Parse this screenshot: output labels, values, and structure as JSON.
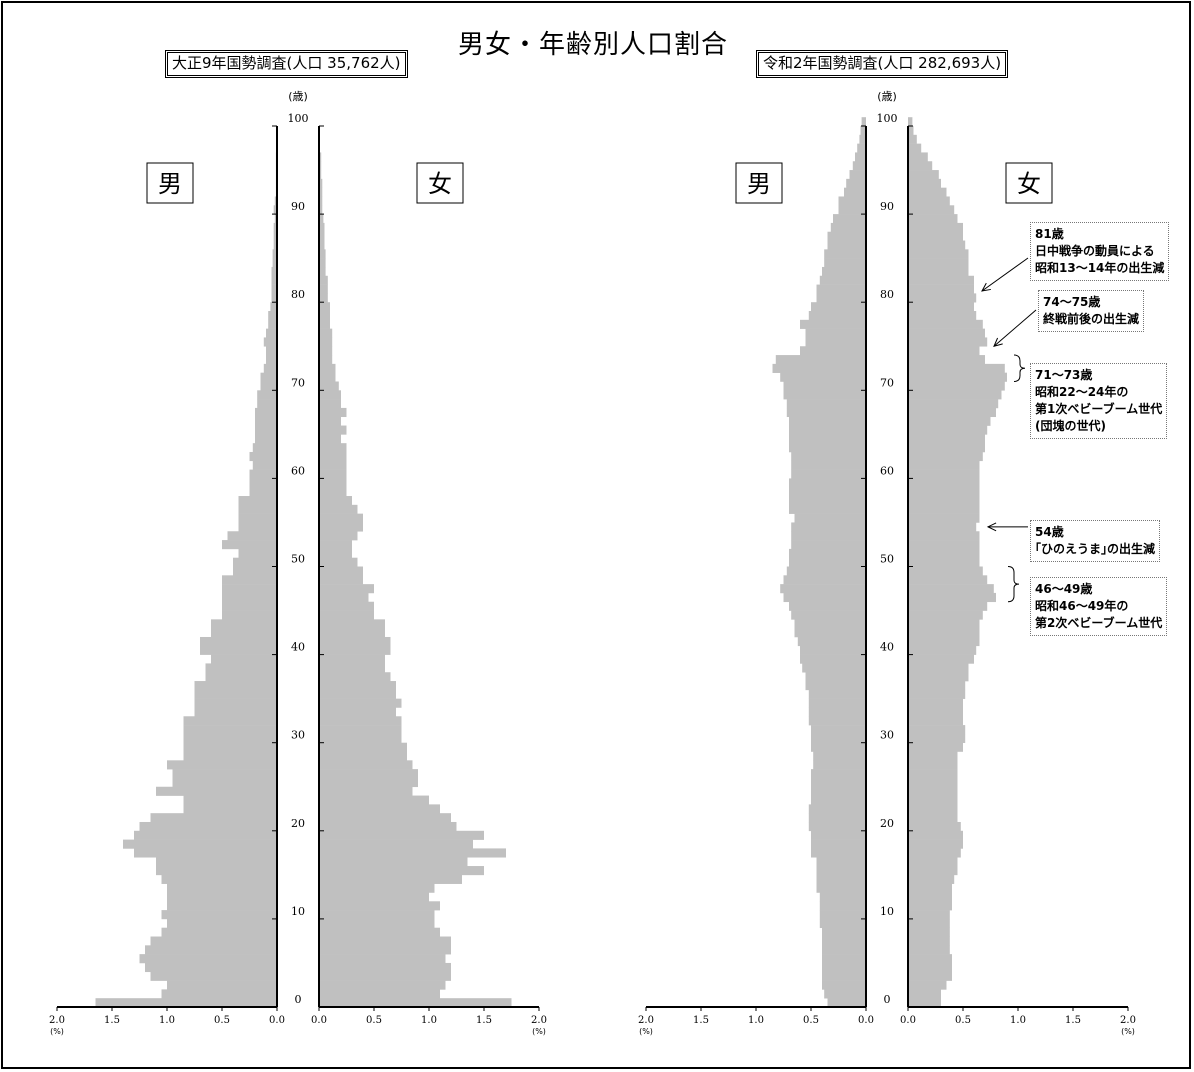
{
  "title": "男女・年齢別人口割合",
  "chart_data": [
    {
      "type": "bar",
      "title": "大正9年国勢調査(人口 35,762人)",
      "y_unit": "(歳)",
      "x_unit": "(%)",
      "y_ticks": [
        0,
        10,
        20,
        30,
        40,
        50,
        60,
        70,
        80,
        90,
        100
      ],
      "x_ticks": [
        "2.0",
        "1.5",
        "1.0",
        "0.5",
        "0.0"
      ],
      "xlim": [
        0,
        2.0
      ],
      "ylim": [
        0,
        100
      ],
      "male_label": "男",
      "female_label": "女",
      "male": [
        1.65,
        1.05,
        1.0,
        1.15,
        1.2,
        1.25,
        1.2,
        1.15,
        1.05,
        1.0,
        1.05,
        1.0,
        1.0,
        1.0,
        1.05,
        1.1,
        1.1,
        1.3,
        1.4,
        1.3,
        1.25,
        1.15,
        0.85,
        0.85,
        1.1,
        0.95,
        0.95,
        1.0,
        0.85,
        0.85,
        0.85,
        0.85,
        0.85,
        0.75,
        0.75,
        0.75,
        0.75,
        0.65,
        0.65,
        0.6,
        0.7,
        0.7,
        0.6,
        0.6,
        0.5,
        0.5,
        0.5,
        0.5,
        0.5,
        0.4,
        0.4,
        0.35,
        0.5,
        0.45,
        0.35,
        0.35,
        0.35,
        0.35,
        0.25,
        0.25,
        0.25,
        0.22,
        0.25,
        0.22,
        0.2,
        0.2,
        0.2,
        0.2,
        0.18,
        0.18,
        0.15,
        0.15,
        0.12,
        0.1,
        0.1,
        0.12,
        0.1,
        0.08,
        0.08,
        0.06,
        0.05,
        0.05,
        0.05,
        0.05,
        0.04,
        0.04,
        0.03,
        0.03,
        0.03,
        0.02,
        0.03,
        0.02,
        0.01,
        0.01,
        0.01,
        0.01,
        0.01,
        0.0,
        0.0,
        0.0,
        0.0
      ],
      "female": [
        1.75,
        1.1,
        1.15,
        1.2,
        1.2,
        1.15,
        1.2,
        1.2,
        1.1,
        1.05,
        1.05,
        1.1,
        1.0,
        1.05,
        1.3,
        1.5,
        1.35,
        1.7,
        1.4,
        1.5,
        1.25,
        1.2,
        1.1,
        1.0,
        0.85,
        0.9,
        0.9,
        0.85,
        0.8,
        0.8,
        0.75,
        0.75,
        0.75,
        0.7,
        0.75,
        0.7,
        0.7,
        0.65,
        0.6,
        0.6,
        0.65,
        0.65,
        0.6,
        0.6,
        0.5,
        0.5,
        0.45,
        0.5,
        0.4,
        0.4,
        0.35,
        0.3,
        0.3,
        0.35,
        0.4,
        0.4,
        0.35,
        0.3,
        0.25,
        0.25,
        0.25,
        0.25,
        0.25,
        0.25,
        0.2,
        0.25,
        0.2,
        0.25,
        0.2,
        0.2,
        0.18,
        0.15,
        0.15,
        0.12,
        0.12,
        0.12,
        0.12,
        0.1,
        0.1,
        0.1,
        0.08,
        0.08,
        0.08,
        0.06,
        0.06,
        0.06,
        0.05,
        0.05,
        0.05,
        0.04,
        0.03,
        0.03,
        0.03,
        0.03,
        0.02,
        0.02,
        0.02,
        0.0,
        0.0,
        0.0,
        0.0
      ]
    },
    {
      "type": "bar",
      "title": "令和2年国勢調査(人口 282,693人)",
      "y_unit": "(歳)",
      "x_unit": "(%)",
      "y_ticks": [
        0,
        10,
        20,
        30,
        40,
        50,
        60,
        70,
        80,
        90,
        100
      ],
      "x_ticks": [
        "2.0",
        "1.5",
        "1.0",
        "0.5",
        "0.0"
      ],
      "xlim": [
        0,
        2.0
      ],
      "ylim": [
        0,
        100
      ],
      "male_label": "男",
      "female_label": "女",
      "male": [
        0.35,
        0.38,
        0.4,
        0.4,
        0.4,
        0.4,
        0.4,
        0.4,
        0.4,
        0.42,
        0.42,
        0.42,
        0.42,
        0.45,
        0.45,
        0.45,
        0.45,
        0.5,
        0.5,
        0.5,
        0.52,
        0.52,
        0.52,
        0.5,
        0.5,
        0.5,
        0.5,
        0.48,
        0.48,
        0.5,
        0.5,
        0.5,
        0.52,
        0.52,
        0.52,
        0.52,
        0.55,
        0.55,
        0.58,
        0.6,
        0.6,
        0.62,
        0.65,
        0.65,
        0.68,
        0.7,
        0.75,
        0.78,
        0.75,
        0.72,
        0.7,
        0.7,
        0.68,
        0.68,
        0.68,
        0.65,
        0.7,
        0.7,
        0.7,
        0.7,
        0.68,
        0.68,
        0.68,
        0.7,
        0.7,
        0.7,
        0.7,
        0.72,
        0.72,
        0.75,
        0.75,
        0.78,
        0.85,
        0.82,
        0.6,
        0.55,
        0.55,
        0.6,
        0.52,
        0.5,
        0.45,
        0.45,
        0.42,
        0.4,
        0.38,
        0.38,
        0.35,
        0.35,
        0.32,
        0.3,
        0.25,
        0.25,
        0.2,
        0.18,
        0.15,
        0.12,
        0.1,
        0.08,
        0.06,
        0.05,
        0.04
      ],
      "female": [
        0.3,
        0.3,
        0.35,
        0.4,
        0.4,
        0.4,
        0.38,
        0.38,
        0.38,
        0.38,
        0.38,
        0.4,
        0.4,
        0.4,
        0.42,
        0.45,
        0.45,
        0.48,
        0.5,
        0.5,
        0.48,
        0.45,
        0.45,
        0.45,
        0.45,
        0.45,
        0.45,
        0.45,
        0.45,
        0.5,
        0.52,
        0.52,
        0.5,
        0.5,
        0.5,
        0.52,
        0.52,
        0.55,
        0.55,
        0.6,
        0.62,
        0.65,
        0.65,
        0.65,
        0.68,
        0.72,
        0.8,
        0.78,
        0.72,
        0.68,
        0.65,
        0.65,
        0.65,
        0.65,
        0.62,
        0.65,
        0.65,
        0.65,
        0.65,
        0.65,
        0.65,
        0.65,
        0.68,
        0.7,
        0.7,
        0.72,
        0.75,
        0.8,
        0.82,
        0.85,
        0.88,
        0.9,
        0.88,
        0.7,
        0.65,
        0.72,
        0.7,
        0.68,
        0.62,
        0.6,
        0.62,
        0.6,
        0.6,
        0.55,
        0.55,
        0.55,
        0.52,
        0.5,
        0.5,
        0.45,
        0.42,
        0.38,
        0.35,
        0.3,
        0.28,
        0.22,
        0.18,
        0.12,
        0.08,
        0.05,
        0.04
      ]
    }
  ],
  "annotations": [
    {
      "id": "81",
      "lines": [
        "81歳",
        "日中戦争の動員による",
        "昭和13～14年の出生減"
      ]
    },
    {
      "id": "74",
      "lines": [
        "74～75歳",
        "終戦前後の出生減"
      ]
    },
    {
      "id": "71",
      "lines": [
        "71～73歳",
        "昭和22～24年の",
        "第1次ベビーブーム世代",
        "(団塊の世代)"
      ]
    },
    {
      "id": "54",
      "lines": [
        "54歳",
        "｢ひのえうま｣の出生減"
      ]
    },
    {
      "id": "46",
      "lines": [
        "46～49歳",
        "昭和46～49年の",
        "第2次ベビーブーム世代"
      ]
    }
  ]
}
